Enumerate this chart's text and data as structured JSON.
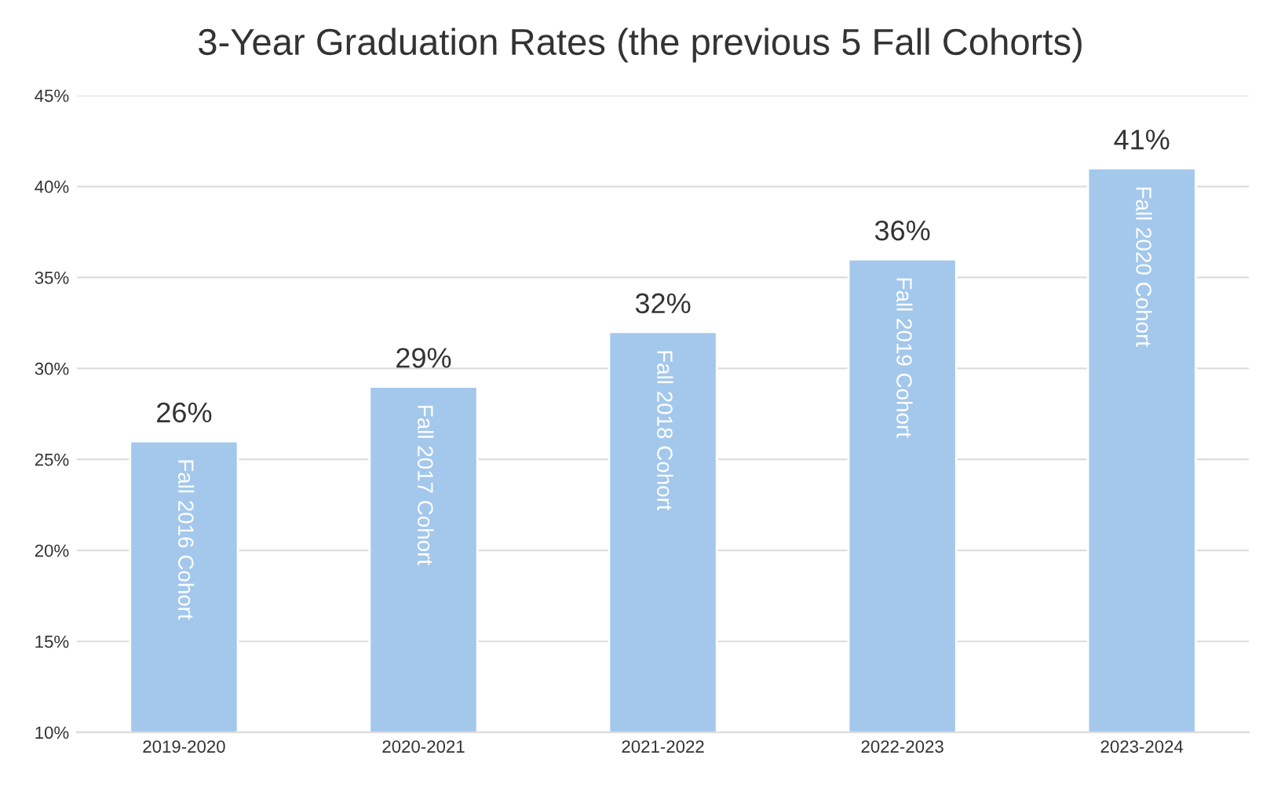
{
  "chart_data": {
    "type": "bar",
    "title": "3-Year Graduation Rates (the previous 5 Fall Cohorts)",
    "categories": [
      "2019-2020",
      "2020-2021",
      "2021-2022",
      "2022-2023",
      "2023-2024"
    ],
    "values": [
      26,
      29,
      32,
      36,
      41
    ],
    "value_labels": [
      "26%",
      "29%",
      "32%",
      "36%",
      "41%"
    ],
    "color": "#a4c8eb",
    "ylim": [
      10,
      45
    ],
    "yticks": [
      {
        "value": 10,
        "label": "10%"
      },
      {
        "value": 15,
        "label": "15%"
      },
      {
        "value": 20,
        "label": "20%"
      },
      {
        "value": 25,
        "label": "25%"
      },
      {
        "value": 30,
        "label": "30%"
      },
      {
        "value": 35,
        "label": "35%"
      },
      {
        "value": 40,
        "label": "40%"
      },
      {
        "value": 45,
        "label": "45%"
      }
    ],
    "grid": "y",
    "annotations": [
      {
        "text": "Fall 2016 Cohort",
        "x": "2019-2020",
        "y": 26
      },
      {
        "text": "Fall 2017 Cohort",
        "x": "2020-2021",
        "y": 29
      },
      {
        "text": "Fall 2018 Cohort",
        "x": "2021-2022",
        "y": 32
      },
      {
        "text": "Fall 2019 Cohort",
        "x": "2022-2023",
        "y": 36
      },
      {
        "text": "Fall 2020 Cohort",
        "x": "2023-2024",
        "y": 41
      }
    ]
  }
}
